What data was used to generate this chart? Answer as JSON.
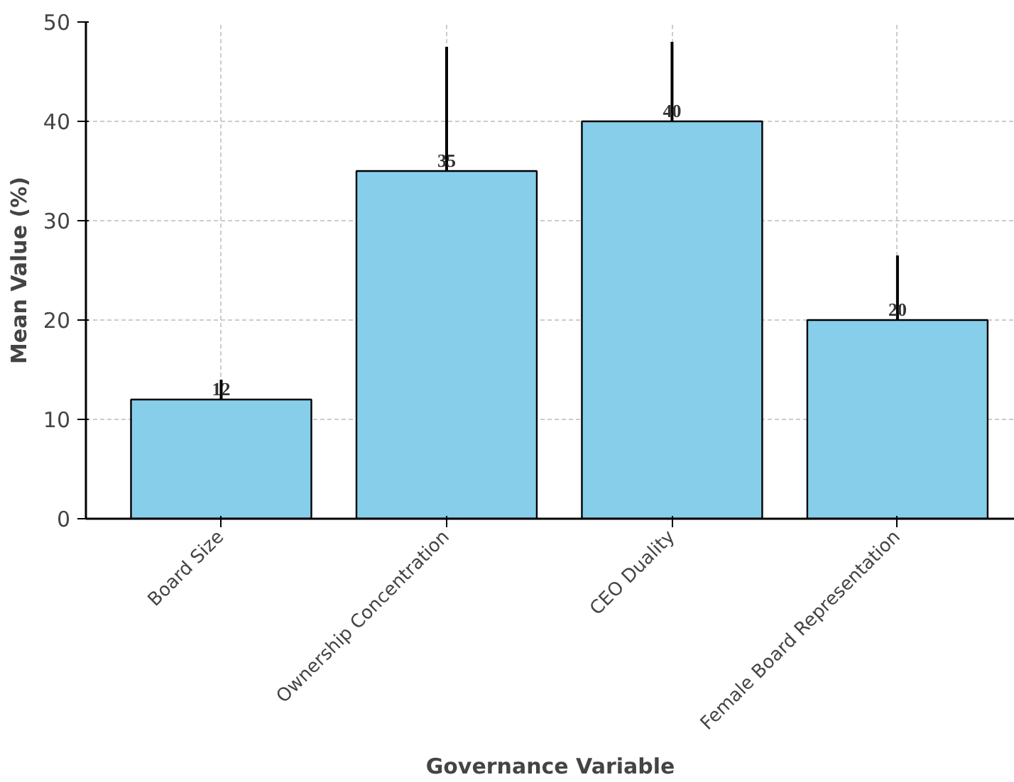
{
  "chart_data": {
    "type": "bar",
    "xlabel": "Governance Variable",
    "ylabel": "Mean Value (%)",
    "categories": [
      "Board Size",
      "Ownership Concentration",
      "CEO Duality",
      "Female Board Representation"
    ],
    "values": [
      12,
      35,
      40,
      20
    ],
    "errors": [
      2,
      12.5,
      8,
      6.5
    ],
    "color": "#87ceeb",
    "ylim": [
      0,
      50
    ],
    "yticks": [
      0,
      10,
      20,
      30,
      40,
      50
    ],
    "grid": true,
    "data_labels": true
  }
}
